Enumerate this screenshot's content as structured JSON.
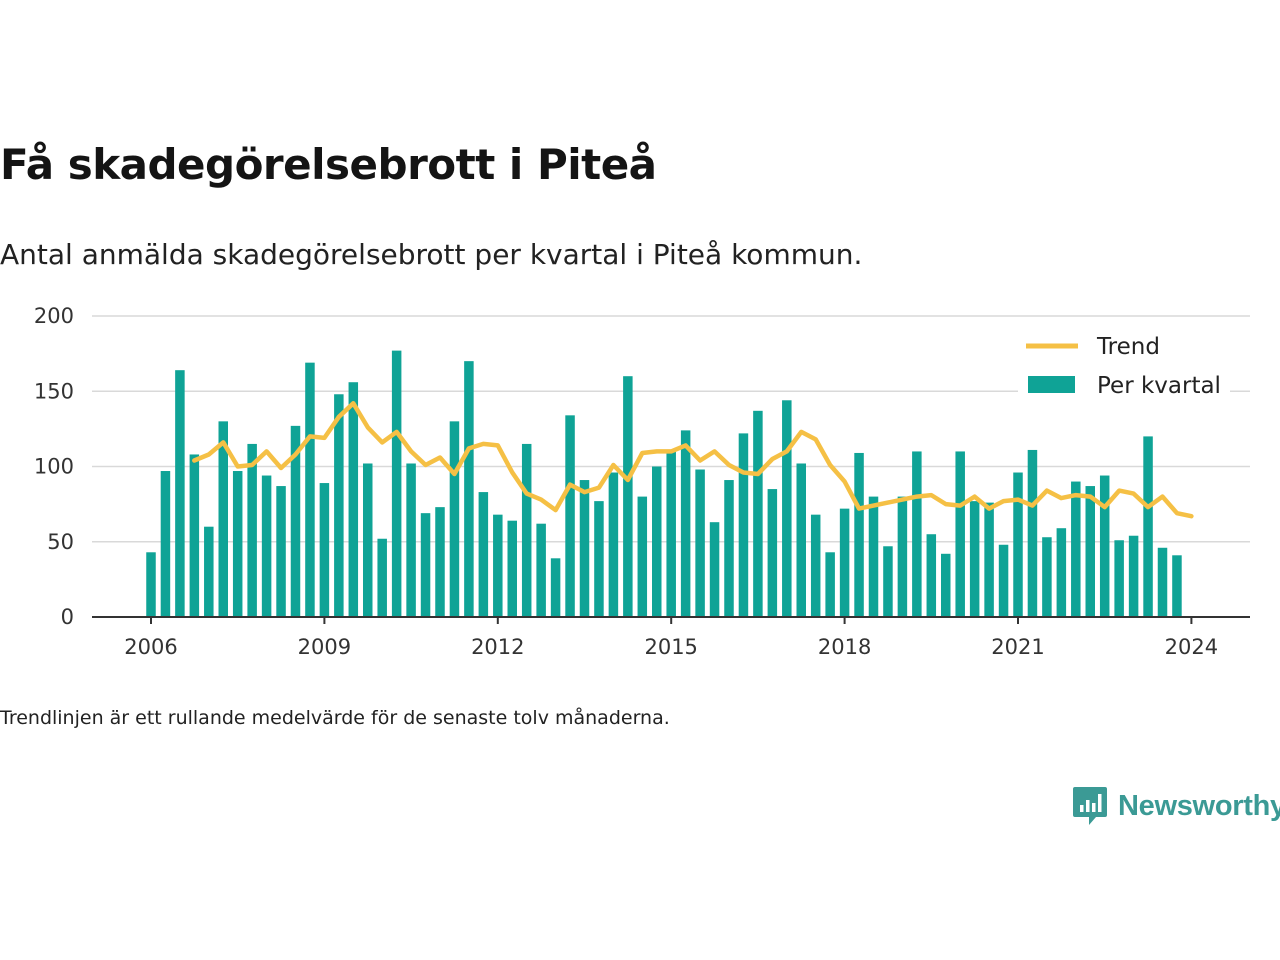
{
  "header": {
    "title": "Få skadegörelsebrott i Piteå",
    "subtitle": "Antal anmälda skadegörelsebrott per kvartal i Piteå kommun."
  },
  "footer": {
    "note": "Trendlinjen är ett rullande medelvärde för de senaste tolv månaderna."
  },
  "brand": {
    "name": "Newsworthy",
    "color": "#3b9a95"
  },
  "colors": {
    "bars": "#0fa396",
    "trend": "#f5c045",
    "grid": "#d9d9d9",
    "axis": "#333333"
  },
  "chart_data": {
    "type": "bar",
    "x_axis": {
      "unit": "quarter",
      "range": [
        "2005-Q4",
        "2024-Q4"
      ],
      "tick_labels": [
        "2006",
        "2009",
        "2012",
        "2015",
        "2018",
        "2021",
        "2024"
      ]
    },
    "y_axis": {
      "range": [
        0,
        200
      ],
      "tick_labels": [
        "0",
        "50",
        "100",
        "150",
        "200"
      ],
      "grid": true
    },
    "legend": {
      "placement": "top-right"
    },
    "categories": [
      "2006-Q1",
      "2006-Q2",
      "2006-Q3",
      "2006-Q4",
      "2007-Q1",
      "2007-Q2",
      "2007-Q3",
      "2007-Q4",
      "2008-Q1",
      "2008-Q2",
      "2008-Q3",
      "2008-Q4",
      "2009-Q1",
      "2009-Q2",
      "2009-Q3",
      "2009-Q4",
      "2010-Q1",
      "2010-Q2",
      "2010-Q3",
      "2010-Q4",
      "2011-Q1",
      "2011-Q2",
      "2011-Q3",
      "2011-Q4",
      "2012-Q1",
      "2012-Q2",
      "2012-Q3",
      "2012-Q4",
      "2013-Q1",
      "2013-Q2",
      "2013-Q3",
      "2013-Q4",
      "2014-Q1",
      "2014-Q2",
      "2014-Q3",
      "2014-Q4",
      "2015-Q1",
      "2015-Q2",
      "2015-Q3",
      "2015-Q4",
      "2016-Q1",
      "2016-Q2",
      "2016-Q3",
      "2016-Q4",
      "2017-Q1",
      "2017-Q2",
      "2017-Q3",
      "2017-Q4",
      "2018-Q1",
      "2018-Q2",
      "2018-Q3",
      "2018-Q4",
      "2019-Q1",
      "2019-Q2",
      "2019-Q3",
      "2019-Q4",
      "2020-Q1",
      "2020-Q2",
      "2020-Q3",
      "2020-Q4",
      "2021-Q1",
      "2021-Q2",
      "2021-Q3",
      "2021-Q4",
      "2022-Q1",
      "2022-Q2",
      "2022-Q3",
      "2022-Q4",
      "2023-Q1",
      "2023-Q2",
      "2023-Q3",
      "2023-Q4",
      "2024-Q1"
    ],
    "series": [
      {
        "name": "Per kvartal",
        "type": "bar",
        "values": [
          43,
          97,
          164,
          108,
          60,
          130,
          97,
          115,
          94,
          87,
          127,
          169,
          89,
          148,
          156,
          102,
          52,
          177,
          102,
          69,
          73,
          130,
          170,
          83,
          68,
          64,
          115,
          62,
          39,
          134,
          91,
          77,
          96,
          160,
          80,
          100,
          111,
          124,
          98,
          63,
          91,
          122,
          137,
          85,
          144,
          102,
          68,
          43,
          72,
          109,
          80,
          47,
          80,
          110,
          55,
          42,
          110,
          77,
          76,
          48,
          96,
          111,
          53,
          59,
          90,
          87,
          94,
          51,
          54,
          120,
          46,
          41,
          0
        ]
      },
      {
        "name": "Trend",
        "type": "line",
        "values": [
          null,
          null,
          null,
          104,
          108,
          116,
          100,
          101,
          110,
          99,
          108,
          120,
          119,
          133,
          142,
          126,
          116,
          123,
          110,
          101,
          106,
          95,
          112,
          115,
          114,
          96,
          82,
          78,
          71,
          88,
          83,
          86,
          101,
          91,
          109,
          110,
          110,
          114,
          104,
          110,
          101,
          96,
          95,
          105,
          110,
          123,
          118,
          101,
          90,
          72,
          74,
          76,
          78,
          80,
          81,
          75,
          74,
          80,
          72,
          77,
          78,
          74,
          84,
          79,
          81,
          80,
          73,
          84,
          82,
          73,
          80,
          69,
          67
        ]
      }
    ]
  }
}
